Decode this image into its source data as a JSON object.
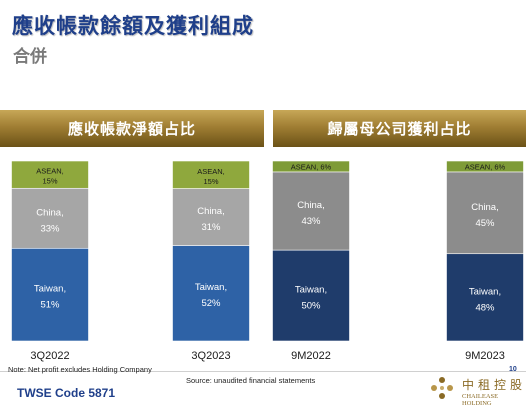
{
  "header": {
    "title": "應收帳款餘額及獲利組成",
    "subtitle": "合併"
  },
  "chart_data": [
    {
      "type": "bar",
      "title": "應收帳款淨額占比",
      "categories": [
        "3Q2022",
        "3Q2023"
      ],
      "stacked": true,
      "series": [
        {
          "name": "Taiwan",
          "values": [
            51,
            52
          ],
          "color": "#2e62a6"
        },
        {
          "name": "China",
          "values": [
            33,
            31
          ],
          "color": "#a6a6a6"
        },
        {
          "name": "ASEAN",
          "values": [
            15,
            15
          ],
          "color": "#8fa83d"
        }
      ],
      "labels": [
        [
          "Taiwan,",
          "China,",
          "ASEAN,"
        ],
        [
          "Taiwan,",
          "China,",
          "ASEAN,"
        ]
      ],
      "percent_labels": [
        [
          "51%",
          "33%",
          "15%"
        ],
        [
          "52%",
          "31%",
          "15%"
        ]
      ]
    },
    {
      "type": "bar",
      "title": "歸屬母公司獲利占比",
      "categories": [
        "9M2022",
        "9M2023"
      ],
      "stacked": true,
      "series": [
        {
          "name": "Taiwan",
          "values": [
            50,
            48
          ],
          "color": "#1f3c6b"
        },
        {
          "name": "China",
          "values": [
            43,
            45
          ],
          "color": "#8c8c8c"
        },
        {
          "name": "ASEAN",
          "values": [
            6,
            6
          ],
          "color": "#7e9b37"
        }
      ],
      "labels": [
        [
          "Taiwan,",
          "China,",
          "ASEAN, 6%"
        ],
        [
          "Taiwan,",
          "China,",
          "ASEAN, 6%"
        ]
      ],
      "percent_labels": [
        [
          "50%",
          "43%",
          ""
        ],
        [
          "48%",
          "45%",
          ""
        ]
      ]
    }
  ],
  "footer": {
    "note": "Note: Net profit excludes Holding Company",
    "source": "Source: unaudited financial statements",
    "page_number": "10",
    "code": "TWSE Code 5871",
    "logo_cn": "中租控股",
    "logo_en": "CHAILEASE HOLDING"
  },
  "colors": {
    "title": "#1f3f8a",
    "banner_gold": "#a07e33",
    "logo_gold": "#8a6a25"
  }
}
